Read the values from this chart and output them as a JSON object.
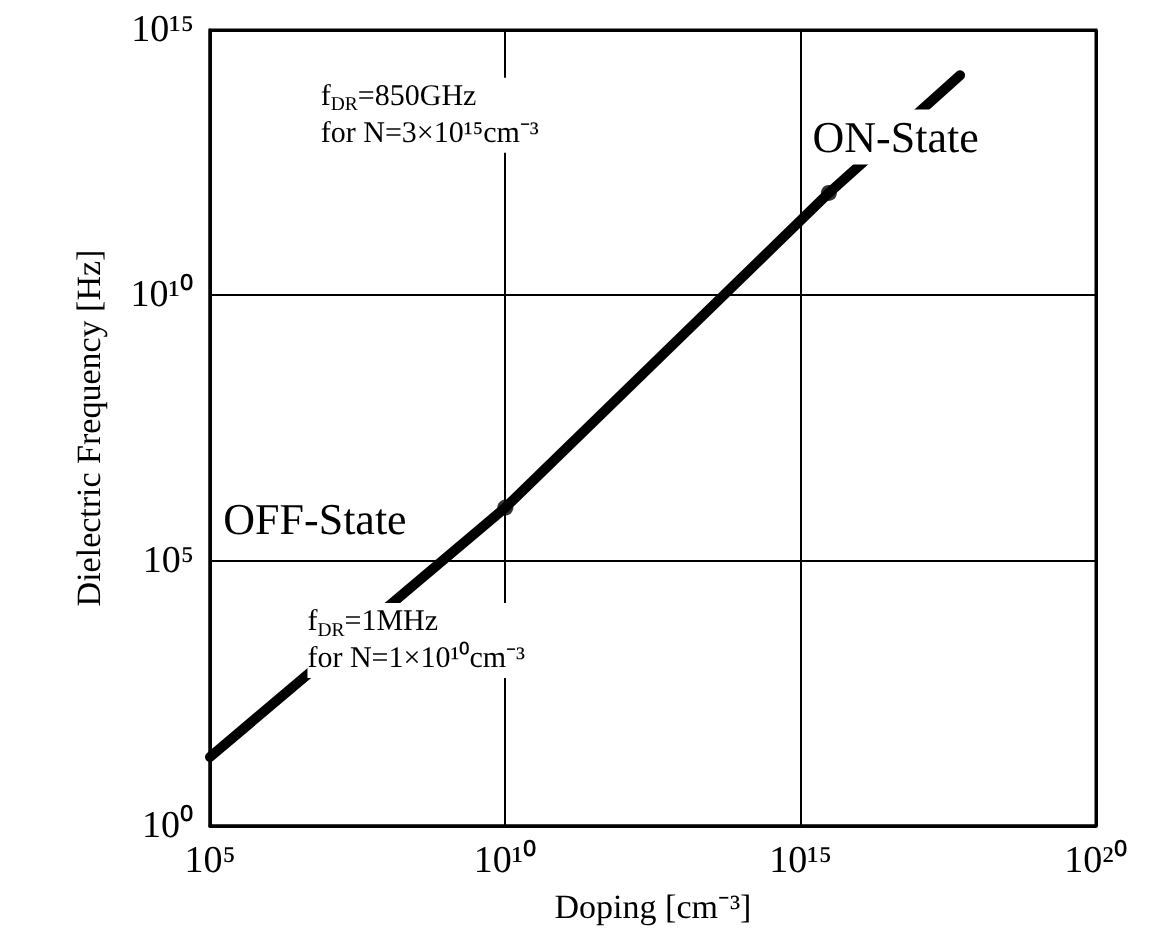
{
  "chart_data": {
    "type": "line",
    "xlabel": "Doping [cm⁻³]",
    "ylabel": "Dielectric Frequency [Hz]",
    "log": "xy",
    "xlim": [
      100000.0,
      1e+20
    ],
    "ylim": [
      1,
      1000000000000000.0
    ],
    "xticks": [
      {
        "value": 100000.0,
        "label": "10⁵"
      },
      {
        "value": 10000000000.0,
        "label": "10¹⁰"
      },
      {
        "value": 1000000000000000.0,
        "label": "10¹⁵"
      },
      {
        "value": 1e+20,
        "label": "10²⁰"
      }
    ],
    "yticks": [
      {
        "value": 1,
        "label": "10⁰"
      },
      {
        "value": 100000.0,
        "label": "10⁵"
      },
      {
        "value": 10000000000.0,
        "label": "10¹⁰"
      },
      {
        "value": 1000000000000000.0,
        "label": "10¹⁵"
      }
    ],
    "grid": true,
    "series": [
      {
        "type": "line",
        "color": "#000000",
        "marker": "none",
        "x": [
          100000.0,
          10000000000.0,
          3000000000000000.0,
          5e+17
        ],
        "values": [
          20,
          1000000.0,
          850000000000.0,
          140000000000000.0
        ]
      },
      {
        "type": "scatter",
        "color": "#000000",
        "marker": "circle",
        "x": [
          10000000000.0,
          3000000000000000.0
        ],
        "values": [
          1000000.0,
          850000000000.0
        ]
      }
    ],
    "annotations": [
      "f$_{DR}$=850GHz\nfor N=3×10¹⁵cm⁻³",
      "ON-State",
      "OFF-State",
      "f$_{DR}$=1MHz\nfor N=1×10¹⁰cm⁻³"
    ]
  }
}
